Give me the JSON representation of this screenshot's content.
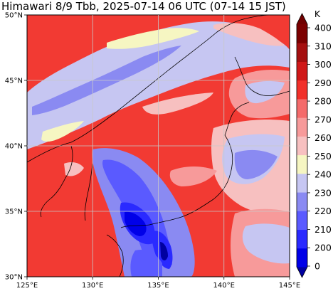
{
  "title": "Himawari 8/9 Tbb, 2025-07-14 06 UTC (07-14 15 JST)",
  "map": {
    "lon_range": [
      125,
      145
    ],
    "lat_range": [
      30,
      50
    ],
    "lon_ticks": [
      "125°E",
      "130°E",
      "135°E",
      "140°E",
      "145°E"
    ],
    "lat_ticks": [
      "30°N",
      "35°N",
      "40°N",
      "45°N",
      "50°N"
    ],
    "grid": true,
    "background_color": "#f23a33"
  },
  "colorbar": {
    "unit": "K",
    "orientation": "vertical",
    "extend": "both",
    "labels": [
      "0",
      "200",
      "210",
      "220",
      "230",
      "240",
      "250",
      "260",
      "270",
      "280",
      "290",
      "300",
      "310",
      "400"
    ],
    "colors": [
      "#0000a0",
      "#0000e8",
      "#2a2aff",
      "#5a5aff",
      "#8a8af2",
      "#c6c6f2",
      "#f6f6c2",
      "#f7c0c0",
      "#f79a9a",
      "#f46b6b",
      "#f2302a",
      "#d01818",
      "#a50f0f",
      "#7c0000",
      "#700000"
    ]
  }
}
